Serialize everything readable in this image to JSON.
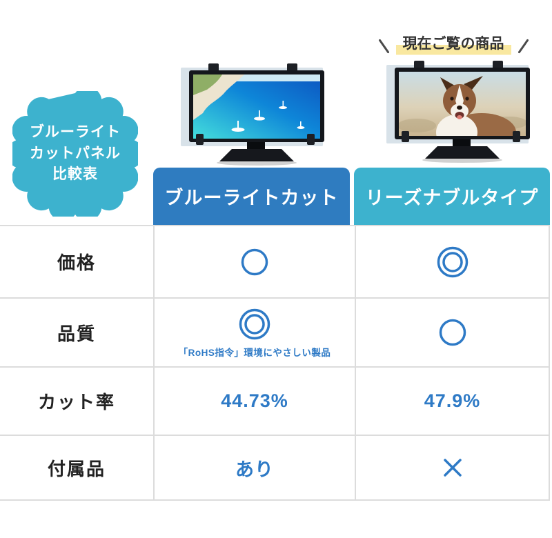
{
  "badge": {
    "lines": [
      "ブルーライト",
      "カットパネル",
      "比較表"
    ]
  },
  "current_item_label": "現在ご覧の商品",
  "columns": [
    {
      "label": "ブルーライトカット",
      "color": "#2f7cc0",
      "image": "tv-with-sea-and-boats-photo"
    },
    {
      "label": "リーズナブルタイプ",
      "color": "#3db2ce",
      "image": "tv-with-dog-photo"
    }
  ],
  "table": {
    "rows": [
      {
        "label": "価格",
        "cells": [
          {
            "symbol": "circle"
          },
          {
            "symbol": "double-circle"
          }
        ]
      },
      {
        "label": "品質",
        "cells": [
          {
            "symbol": "double-circle",
            "note": "「RoHS指令」環境にやさしい製品"
          },
          {
            "symbol": "circle"
          }
        ]
      },
      {
        "label": "カット率",
        "cells": [
          {
            "text": "44.73%"
          },
          {
            "text": "47.9%"
          }
        ]
      },
      {
        "label": "付属品",
        "cells": [
          {
            "text": "あり"
          },
          {
            "symbol": "cross"
          }
        ]
      }
    ]
  },
  "symbols_legend": {
    "circle": "○",
    "double-circle": "◎",
    "cross": "✕"
  },
  "colors": {
    "header_blue": "#2f7cc0",
    "header_cyan": "#3db2ce",
    "badge_cyan": "#3db2ce",
    "accent_blue": "#2e7ac6",
    "highlight_yellow": "#f9e8a0",
    "grid_line": "#dcdcdc",
    "label_text": "#222222"
  }
}
